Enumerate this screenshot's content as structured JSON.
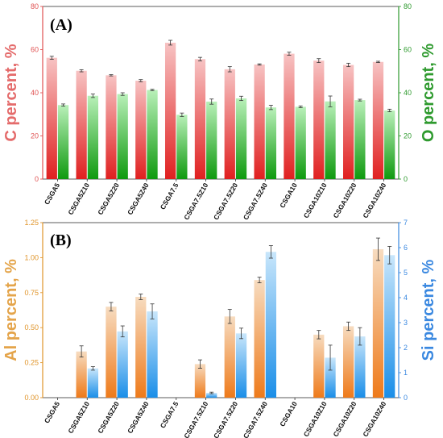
{
  "chart_data": [
    {
      "type": "bar",
      "panel_label": "(A)",
      "categories": [
        "CSGA5",
        "CSGA5Z10",
        "CSGA5Z20",
        "CSGA5Z40",
        "CSGA7.5",
        "CSGA7.5Z10",
        "CSGA7.5Z20",
        "CSGA7.5Z40",
        "CSGA10",
        "CSGA10Z10",
        "CSGA10Z20",
        "CSGA10Z40"
      ],
      "ylabel_left": "C percent, %",
      "ylabel_right": "O percent, %",
      "ylim_left": [
        0,
        80
      ],
      "ylim_right": [
        0,
        80
      ],
      "yticks_left": [
        "0",
        "20",
        "40",
        "60",
        "80"
      ],
      "yticks_right": [
        "0",
        "20",
        "40",
        "60",
        "80"
      ],
      "colors": {
        "left_axis": "#e05252",
        "right_axis": "#2e9a2e",
        "left_bar_top": "#f7c3c3",
        "left_bar_bottom": "#e02020",
        "right_bar_top": "#b9f0b9",
        "right_bar_bottom": "#0f9a0f"
      },
      "series": [
        {
          "axis": "left",
          "values": [
            56.2,
            50.2,
            48.1,
            45.6,
            63.2,
            55.6,
            50.9,
            53.1,
            58.1,
            54.9,
            52.9,
            54.3
          ],
          "errors": [
            0.7,
            0.5,
            0.3,
            0.5,
            1.1,
            0.8,
            1.2,
            0.3,
            0.7,
            0.9,
            0.8,
            0.3
          ]
        },
        {
          "axis": "right",
          "values": [
            34.3,
            38.6,
            39.4,
            41.3,
            29.8,
            35.9,
            37.4,
            33.2,
            33.5,
            36.0,
            36.6,
            31.8
          ],
          "errors": [
            0.5,
            0.8,
            0.6,
            0.3,
            0.8,
            1.2,
            1.0,
            1.0,
            0.4,
            2.5,
            0.4,
            0.6
          ]
        }
      ]
    },
    {
      "type": "bar",
      "panel_label": "(B)",
      "categories": [
        "CSGA5",
        "CSGA5Z10",
        "CSGA5Z20",
        "CSGA5Z40",
        "CSGA7.5",
        "CSGA7.5Z10",
        "CSGA7.5Z20",
        "CSGA7.5Z40",
        "CSGA10",
        "CSGA10Z10",
        "CSGA10Z20",
        "CSGA10Z40"
      ],
      "ylabel_left": "Al percent, %",
      "ylabel_right": "Si percent, %",
      "ylim_left": [
        0,
        1.25
      ],
      "ylim_right": [
        0,
        7
      ],
      "yticks_left": [
        "0.00",
        "0.25",
        "0.50",
        "0.75",
        "1.00",
        "1.25"
      ],
      "yticks_right": [
        "0",
        "1",
        "2",
        "3",
        "4",
        "5",
        "6",
        "7"
      ],
      "colors": {
        "left_axis": "#e0952b",
        "right_axis": "#3a88e0",
        "left_bar_top": "#f7dcc0",
        "left_bar_bottom": "#ee7a1a",
        "right_bar_top": "#c8e6fb",
        "right_bar_bottom": "#1a8ee8"
      },
      "series": [
        {
          "axis": "left",
          "values": [
            0,
            0.33,
            0.65,
            0.72,
            0,
            0.24,
            0.58,
            0.84,
            0,
            0.45,
            0.51,
            1.06
          ],
          "errors": [
            0,
            0.04,
            0.03,
            0.02,
            0,
            0.03,
            0.05,
            0.02,
            0,
            0.03,
            0.03,
            0.08
          ]
        },
        {
          "axis": "right",
          "values": [
            0,
            1.17,
            2.65,
            3.45,
            0,
            0.19,
            2.57,
            5.83,
            0,
            1.6,
            2.45,
            5.7
          ],
          "errors": [
            0,
            0.07,
            0.22,
            0.3,
            0,
            0.03,
            0.21,
            0.25,
            0,
            0.5,
            0.35,
            0.35
          ]
        }
      ]
    }
  ]
}
